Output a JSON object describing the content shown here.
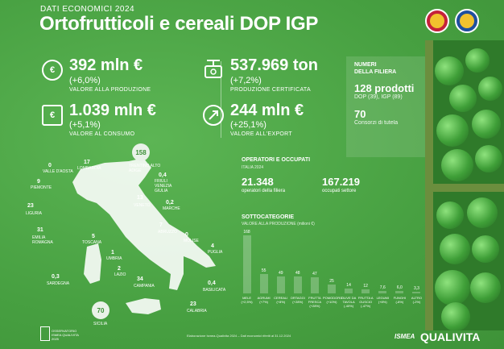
{
  "header": {
    "subtitle": "DATI ECONOMICI 2024",
    "title": "Ortofrutticoli e cereali DOP IGP"
  },
  "stats": {
    "produzione": {
      "value": "392 mln €",
      "pct": "(+6,0%)",
      "label": "VALORE ALLA PRODUZIONE",
      "icon": "€"
    },
    "consumo": {
      "value": "1.039 mln €",
      "pct": "(+5,1%)",
      "label": "VALORE AL CONSUMO",
      "icon": "€"
    },
    "certificata": {
      "value": "537.969 ton",
      "pct": "(+7,2%)",
      "label": "PRODUZIONE CERTIFICATA"
    },
    "export": {
      "value": "244 mln €",
      "pct": "(+25,1%)",
      "label": "VALORE ALL'EXPORT"
    }
  },
  "filiera": {
    "title1": "NUMERI",
    "title2": "DELLA FILIERA",
    "prodotti": "128 prodotti",
    "prodotti_sub": "DOP (39), IGP (89)",
    "consorzi": "70",
    "consorzi_sub": "Consorzi di tutela"
  },
  "operatori": {
    "title": "OPERATORI E OCCUPATI",
    "sub": "ITALIA 2024",
    "operatori_value": "21.348",
    "operatori_label": "operatori della filiera",
    "occupati_value": "167.219",
    "occupati_label": "occupati settore"
  },
  "sottocategorie": {
    "title": "SOTTOCATEGORIE",
    "subtitle": "VALORE ALLA PRODUZIONE (milioni €)"
  },
  "chart_data": {
    "type": "bar",
    "title": "SOTTOCATEGORIE",
    "ylabel": "VALORE ALLA PRODUZIONE (milioni €)",
    "categories": [
      "MELE (+2,5%)",
      "AGRUMI (+7%)",
      "CEREALI (+8%)",
      "ORTAGGI (+28%)",
      "FRUTTA FRESCA (+28%)",
      "POMODORO (+10%)",
      "OLIVE DA TAVOLA (-40%)",
      "FRUTTA A GUSCIO (-47%)",
      "LEGUMI (+8%)",
      "FUNGHI (-8%)",
      "ALTRO (-2%)"
    ],
    "values": [
      168,
      55,
      49,
      48,
      47,
      25,
      14,
      12,
      7.6,
      6.0,
      3.3
    ],
    "value_labels": [
      "168",
      "55",
      "49",
      "48",
      "47",
      "25",
      "14",
      "12",
      "7,6",
      "6,0",
      "3,3"
    ]
  },
  "regions": [
    {
      "name": "VALLE D'AOSTA",
      "value": "0"
    },
    {
      "name": "LOMBARDIA",
      "value": "17"
    },
    {
      "name": "TRENTINO ALTO ADIGE",
      "value": "158"
    },
    {
      "name": "FRIULI VENEZIA GIULIA",
      "value": "0,4"
    },
    {
      "name": "PIEMONTE",
      "value": "9"
    },
    {
      "name": "VENETO",
      "value": "13"
    },
    {
      "name": "LIGURIA",
      "value": "23"
    },
    {
      "name": "MARCHE",
      "value": "0,2"
    },
    {
      "name": "EMILIA ROMAGNA",
      "value": "31"
    },
    {
      "name": "ABRUZZO",
      "value": "7"
    },
    {
      "name": "TOSCANA",
      "value": "5"
    },
    {
      "name": "MOLISE",
      "value": "0"
    },
    {
      "name": "UMBRIA",
      "value": "1"
    },
    {
      "name": "PUGLIA",
      "value": "4"
    },
    {
      "name": "LAZIO",
      "value": "2"
    },
    {
      "name": "SARDEGNA",
      "value": "0,3"
    },
    {
      "name": "CAMPANIA",
      "value": "34"
    },
    {
      "name": "BASILICATA",
      "value": "0,4"
    },
    {
      "name": "CALABRIA",
      "value": "23"
    },
    {
      "name": "SICILIA",
      "value": "70"
    }
  ],
  "footer": {
    "note": "Elaborazione Ismea-Qualivita 2024 – Dati economici riferiti al 31.12.2024",
    "logo_text1": "OSSERVATORIO",
    "logo_text2": "ISMEA QUALIVITA",
    "logo_text3": "2025",
    "ismea": "ISMEA",
    "qualivita": "QUALIVITA"
  },
  "colors": {
    "background": "#4fa448",
    "dop_logo": "#c5213a",
    "igp_logo": "#1f4f9e"
  }
}
